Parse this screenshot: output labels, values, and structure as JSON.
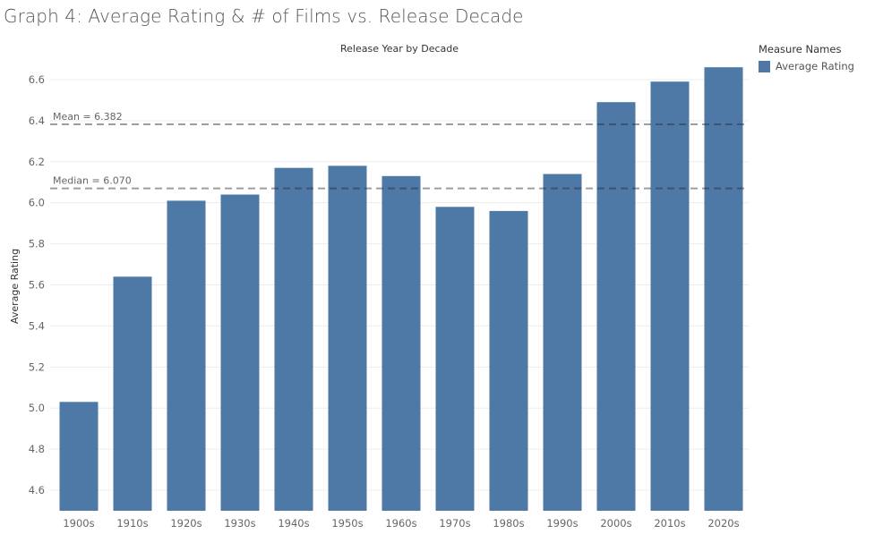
{
  "title": "Graph 4: Average Rating & # of Films vs. Release Decade",
  "legend": {
    "title": "Measure Names",
    "items": [
      {
        "label": "Average Rating",
        "color": "#4e79a7"
      }
    ]
  },
  "chart_data": {
    "type": "bar",
    "title": "Release Year by Decade",
    "xlabel": "",
    "ylabel": "Average Rating",
    "categories": [
      "1900s",
      "1910s",
      "1920s",
      "1930s",
      "1940s",
      "1950s",
      "1960s",
      "1970s",
      "1980s",
      "1990s",
      "2000s",
      "2010s",
      "2020s"
    ],
    "series": [
      {
        "name": "Average Rating",
        "values": [
          5.03,
          5.64,
          6.01,
          6.04,
          6.17,
          6.18,
          6.13,
          5.98,
          5.96,
          6.14,
          6.49,
          6.59,
          6.66
        ],
        "color": "#4e79a7"
      }
    ],
    "ylim": [
      4.5,
      6.7
    ],
    "yticks": [
      "4.6",
      "4.8",
      "5.0",
      "5.2",
      "5.4",
      "5.6",
      "5.8",
      "6.0",
      "6.2",
      "6.4",
      "6.6"
    ],
    "reference_lines": [
      {
        "label": "Mean = 6.382",
        "value": 6.382
      },
      {
        "label": "Median = 6.070",
        "value": 6.07
      }
    ],
    "grid": true
  }
}
